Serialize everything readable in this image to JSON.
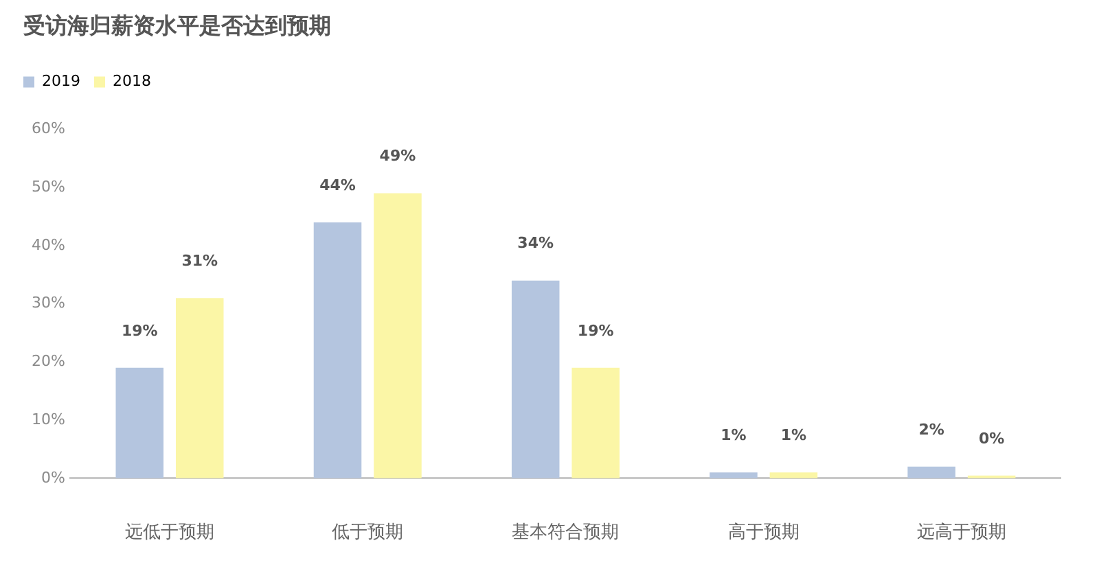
{
  "chart_data": {
    "type": "bar",
    "title": "受访海归薪资水平是否达到预期",
    "categories": [
      "远低于预期",
      "低于预期",
      "基本符合预期",
      "高于预期",
      "远高于预期"
    ],
    "series": [
      {
        "name": "2019",
        "color": "#b4c5df",
        "values": [
          19,
          44,
          34,
          1,
          2
        ],
        "value_labels": [
          "19%",
          "44%",
          "34%",
          "1%",
          "2%"
        ]
      },
      {
        "name": "2018",
        "color": "#fbf6a6",
        "values": [
          31,
          49,
          19,
          1,
          0
        ],
        "value_labels": [
          "31%",
          "49%",
          "19%",
          "1%",
          "0%"
        ]
      }
    ],
    "ylim": [
      0,
      60
    ],
    "yticks": [
      {
        "value": 0,
        "label": "0%"
      },
      {
        "value": 10,
        "label": "10%"
      },
      {
        "value": 20,
        "label": "20%"
      },
      {
        "value": 30,
        "label": "30%"
      },
      {
        "value": 40,
        "label": "40%"
      },
      {
        "value": 50,
        "label": "50%"
      },
      {
        "value": 60,
        "label": "60%"
      }
    ],
    "grid": false,
    "legend": "top left"
  }
}
